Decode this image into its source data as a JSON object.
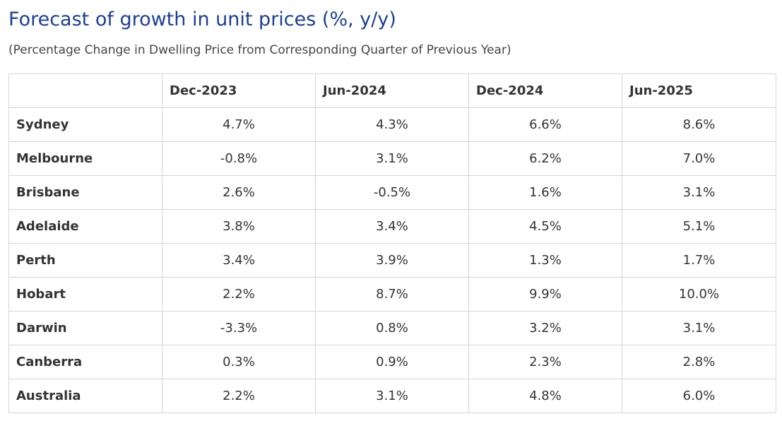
{
  "title": "Forecast of growth in unit prices (%, y/y)",
  "subtitle": "(Percentage Change in Dwelling Price from Corresponding Quarter of Previous Year)",
  "colors": {
    "title": "#1c3f94",
    "text": "#333333",
    "border": "#d6d6d6"
  },
  "chart_data": {
    "type": "table",
    "title": "Forecast of growth in unit prices (%, y/y)",
    "subtitle": "(Percentage Change in Dwelling Price from Corresponding Quarter of Previous Year)",
    "columns": [
      "",
      "Dec-2023",
      "Jun-2024",
      "Dec-2024",
      "Jun-2025"
    ],
    "rows": [
      {
        "label": "Sydney",
        "values": [
          "4.7%",
          "4.3%",
          "6.6%",
          "8.6%"
        ]
      },
      {
        "label": "Melbourne",
        "values": [
          "-0.8%",
          "3.1%",
          "6.2%",
          "7.0%"
        ]
      },
      {
        "label": "Brisbane",
        "values": [
          "2.6%",
          "-0.5%",
          "1.6%",
          "3.1%"
        ]
      },
      {
        "label": "Adelaide",
        "values": [
          "3.8%",
          "3.4%",
          "4.5%",
          "5.1%"
        ]
      },
      {
        "label": "Perth",
        "values": [
          "3.4%",
          "3.9%",
          "1.3%",
          "1.7%"
        ]
      },
      {
        "label": "Hobart",
        "values": [
          "2.2%",
          "8.7%",
          "9.9%",
          "10.0%"
        ]
      },
      {
        "label": "Darwin",
        "values": [
          "-3.3%",
          "0.8%",
          "3.2%",
          "3.1%"
        ]
      },
      {
        "label": "Canberra",
        "values": [
          "0.3%",
          "0.9%",
          "2.3%",
          "2.8%"
        ]
      },
      {
        "label": "Australia",
        "values": [
          "2.2%",
          "3.1%",
          "4.8%",
          "6.0%"
        ]
      }
    ]
  }
}
